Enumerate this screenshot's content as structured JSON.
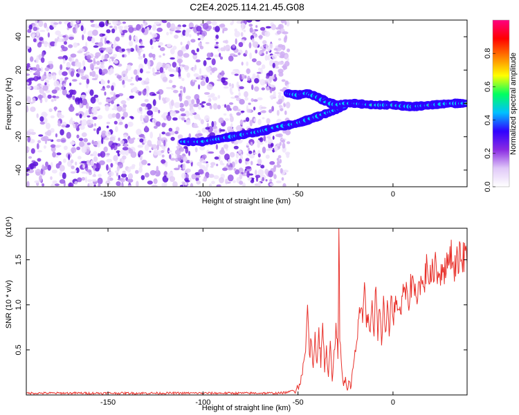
{
  "title": "C2E4.2025.114.21.45.G08",
  "chart_data": [
    {
      "type": "heatmap",
      "xlabel": "Height of straight line (km)",
      "ylabel": "Frequency (Hz)",
      "xlim": [
        -193,
        39
      ],
      "ylim": [
        -50,
        50
      ],
      "xticks": [
        -150,
        -100,
        -50,
        0
      ],
      "yticks": [
        40,
        20,
        0,
        -20,
        -40
      ],
      "colorbar": {
        "label": "Normalized spectral amplitude",
        "range": [
          0.0,
          1.0
        ],
        "ticks": [
          0.0,
          0.2,
          0.4,
          0.6,
          0.8
        ],
        "colors": [
          "#ffffff",
          "#e0c8f8",
          "#8a2be2",
          "#3000ff",
          "#00c0ff",
          "#00ff60",
          "#ffff00",
          "#ff8000",
          "#ff0000",
          "#ff0080"
        ]
      },
      "noise_region_x": [
        -193,
        -55
      ],
      "signal_track": {
        "upper_branch": [
          [
            -55,
            6
          ],
          [
            -50,
            5
          ],
          [
            -45,
            6
          ],
          [
            -40,
            4
          ],
          [
            -35,
            1
          ],
          [
            -30,
            -1
          ],
          [
            -25,
            0
          ],
          [
            -20,
            0
          ]
        ],
        "lower_branch": [
          [
            -110,
            -23
          ],
          [
            -100,
            -23
          ],
          [
            -90,
            -21
          ],
          [
            -80,
            -19
          ],
          [
            -70,
            -17
          ],
          [
            -60,
            -14
          ],
          [
            -50,
            -12
          ],
          [
            -40,
            -8
          ],
          [
            -30,
            -4
          ],
          [
            -25,
            -1
          ]
        ],
        "merged": [
          [
            -20,
            0
          ],
          [
            -10,
            -1
          ],
          [
            0,
            -1
          ],
          [
            10,
            -2
          ],
          [
            20,
            -1
          ],
          [
            30,
            0
          ],
          [
            39,
            0
          ]
        ]
      }
    },
    {
      "type": "line",
      "xlabel": "Height of straight line (km)",
      "ylabel": "SNR (10 * v/v)",
      "multiplier": "(x10⁴)",
      "xlim": [
        -193,
        39
      ],
      "ylim": [
        0.0,
        1.85
      ],
      "xticks": [
        -150,
        -100,
        -50,
        0
      ],
      "yticks": [
        0.5,
        1.0,
        1.5
      ],
      "ytick_labels": [
        "0.5",
        "1.0",
        "1.5"
      ],
      "series": [
        {
          "color": "#e8302a",
          "x": [
            -193,
            -150,
            -100,
            -60,
            -55,
            -50,
            -48,
            -46,
            -45,
            -44,
            -43,
            -42,
            -41,
            -40,
            -39,
            -38,
            -37,
            -36,
            -35,
            -34,
            -33,
            -32,
            -31,
            -30,
            -29,
            -28.5,
            -28,
            -27,
            -26,
            -25,
            -24,
            -23,
            -22,
            -21,
            -20,
            -19,
            -18,
            -17,
            -16,
            -15,
            -14,
            -13,
            -12,
            -11,
            -10,
            -9,
            -8,
            -7,
            -6,
            -5,
            -4,
            -3,
            -2,
            -1,
            0,
            2,
            4,
            6,
            8,
            10,
            12,
            14,
            16,
            18,
            20,
            22,
            24,
            26,
            28,
            30,
            32,
            34,
            36,
            38,
            39
          ],
          "y": [
            0.02,
            0.02,
            0.02,
            0.02,
            0.03,
            0.08,
            0.22,
            0.48,
            1.0,
            0.45,
            0.6,
            0.3,
            0.7,
            0.35,
            0.75,
            0.3,
            0.8,
            0.25,
            0.55,
            0.2,
            0.6,
            0.15,
            0.5,
            0.8,
            0.4,
            1.85,
            0.6,
            0.3,
            0.1,
            0.2,
            0.05,
            0.15,
            0.1,
            0.3,
            0.5,
            0.6,
            0.85,
            0.95,
            0.8,
            1.25,
            0.75,
            0.9,
            0.7,
            1.05,
            0.65,
            1.2,
            0.6,
            0.95,
            0.55,
            1.1,
            0.7,
            1.05,
            0.65,
            1.1,
            0.85,
            1.05,
            0.9,
            1.2,
            1.0,
            1.3,
            1.1,
            1.25,
            1.2,
            1.45,
            1.25,
            1.5,
            1.3,
            1.45,
            1.35,
            1.65,
            1.4,
            1.55,
            1.5,
            1.6,
            1.45
          ]
        }
      ]
    }
  ]
}
